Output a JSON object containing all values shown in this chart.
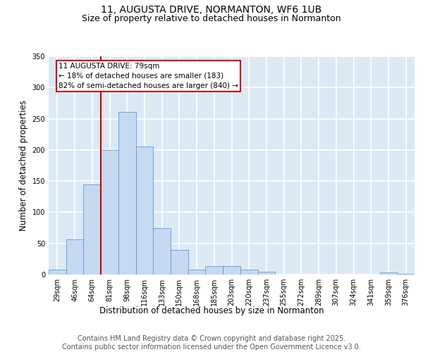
{
  "title1": "11, AUGUSTA DRIVE, NORMANTON, WF6 1UB",
  "title2": "Size of property relative to detached houses in Normanton",
  "xlabel": "Distribution of detached houses by size in Normanton",
  "ylabel": "Number of detached properties",
  "categories": [
    "29sqm",
    "46sqm",
    "64sqm",
    "81sqm",
    "98sqm",
    "116sqm",
    "133sqm",
    "150sqm",
    "168sqm",
    "185sqm",
    "203sqm",
    "220sqm",
    "237sqm",
    "255sqm",
    "272sqm",
    "289sqm",
    "307sqm",
    "324sqm",
    "341sqm",
    "359sqm",
    "376sqm"
  ],
  "values": [
    8,
    57,
    144,
    200,
    261,
    205,
    75,
    40,
    8,
    13,
    13,
    8,
    5,
    0,
    0,
    0,
    0,
    0,
    0,
    3,
    1
  ],
  "bar_color": "#c5d9f1",
  "bar_edge_color": "#5b9bd5",
  "highlight_color": "#cc0000",
  "highlight_line_index": 3,
  "annotation_text": "11 AUGUSTA DRIVE: 79sqm\n← 18% of detached houses are smaller (183)\n82% of semi-detached houses are larger (840) →",
  "annotation_box_color": "#cc0000",
  "ylim": [
    0,
    350
  ],
  "yticks": [
    0,
    50,
    100,
    150,
    200,
    250,
    300,
    350
  ],
  "background_color": "#dce9f5",
  "grid_color": "#ffffff",
  "footer_text": "Contains HM Land Registry data © Crown copyright and database right 2025.\nContains public sector information licensed under the Open Government Licence v3.0.",
  "title_fontsize": 10,
  "subtitle_fontsize": 9,
  "axis_label_fontsize": 8.5,
  "tick_fontsize": 7,
  "footer_fontsize": 7,
  "annotation_fontsize": 7.5
}
